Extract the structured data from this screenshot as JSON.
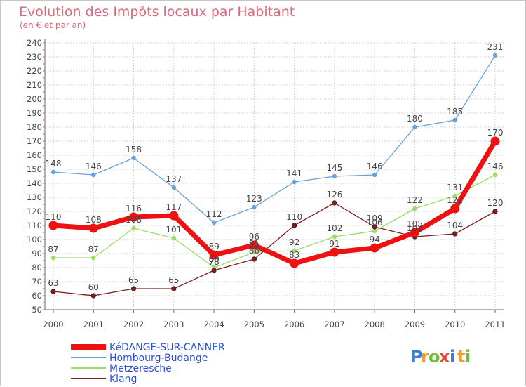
{
  "chart_data": {
    "type": "line",
    "title": "Evolution des Impôts locaux par Habitant",
    "subtitle": "(en € et par an)",
    "xlabel": "",
    "ylabel": "",
    "ylim": [
      50,
      240
    ],
    "yticks": [
      50,
      60,
      70,
      80,
      90,
      100,
      110,
      120,
      130,
      140,
      150,
      160,
      170,
      180,
      190,
      200,
      210,
      220,
      230,
      240
    ],
    "categories": [
      "2000",
      "2001",
      "2002",
      "2003",
      "2004",
      "2005",
      "2006",
      "2007",
      "2008",
      "2009",
      "2010",
      "2011"
    ],
    "grid": true,
    "legend_position": "bottom-left",
    "series": [
      {
        "name": "Hombourg-Budange",
        "color": "#6aa2d8",
        "width": 1.3,
        "marker": 3.2,
        "values": [
          148,
          146,
          158,
          137,
          112,
          123,
          141,
          145,
          146,
          180,
          185,
          231
        ],
        "labels": [
          "148",
          "146",
          "158",
          "137",
          "112",
          "123",
          "141",
          "145",
          "146",
          "180",
          "185",
          "231"
        ]
      },
      {
        "name": "Metzeresche",
        "color": "#99dd66",
        "width": 1.3,
        "marker": 3.2,
        "values": [
          87,
          87,
          108,
          101,
          80,
          91,
          92,
          102,
          106,
          122,
          131,
          146
        ],
        "labels": [
          "87",
          "87",
          "108",
          "101",
          "80",
          "91",
          "92",
          "102",
          "106",
          "122",
          "131",
          "146"
        ]
      },
      {
        "name": "Klang",
        "color": "#7a2020",
        "width": 1.3,
        "marker": 3.2,
        "values": [
          63,
          60,
          65,
          65,
          78,
          86,
          110,
          126,
          109,
          102,
          104,
          120
        ],
        "labels": [
          "63",
          "60",
          "65",
          "65",
          "78",
          "86",
          "110",
          "126",
          "109",
          "102",
          "104",
          "120"
        ]
      },
      {
        "name": "KéDANGE-SUR-CANNER",
        "color": "#ee1111",
        "width": 7,
        "marker": 6.5,
        "values": [
          110,
          108,
          116,
          117,
          89,
          96,
          83,
          91,
          94,
          105,
          122,
          170
        ],
        "labels": [
          "110",
          "108",
          "116",
          "117",
          "89",
          "96",
          "83",
          "91",
          "94",
          "105",
          "122",
          "170"
        ]
      }
    ],
    "legend": [
      "KéDANGE-SUR-CANNER",
      "Hombourg-Budange",
      "Metzeresche",
      "Klang"
    ]
  },
  "logo": {
    "letters": [
      "P",
      "r",
      "o",
      "x",
      "i",
      "t",
      "i"
    ],
    "colors": [
      "#3a7fd4",
      "#f29a2e",
      "#6cbf3a",
      "#e24c3a",
      "#3a7fd4",
      "#f29a2e",
      "#6cbf3a"
    ]
  }
}
